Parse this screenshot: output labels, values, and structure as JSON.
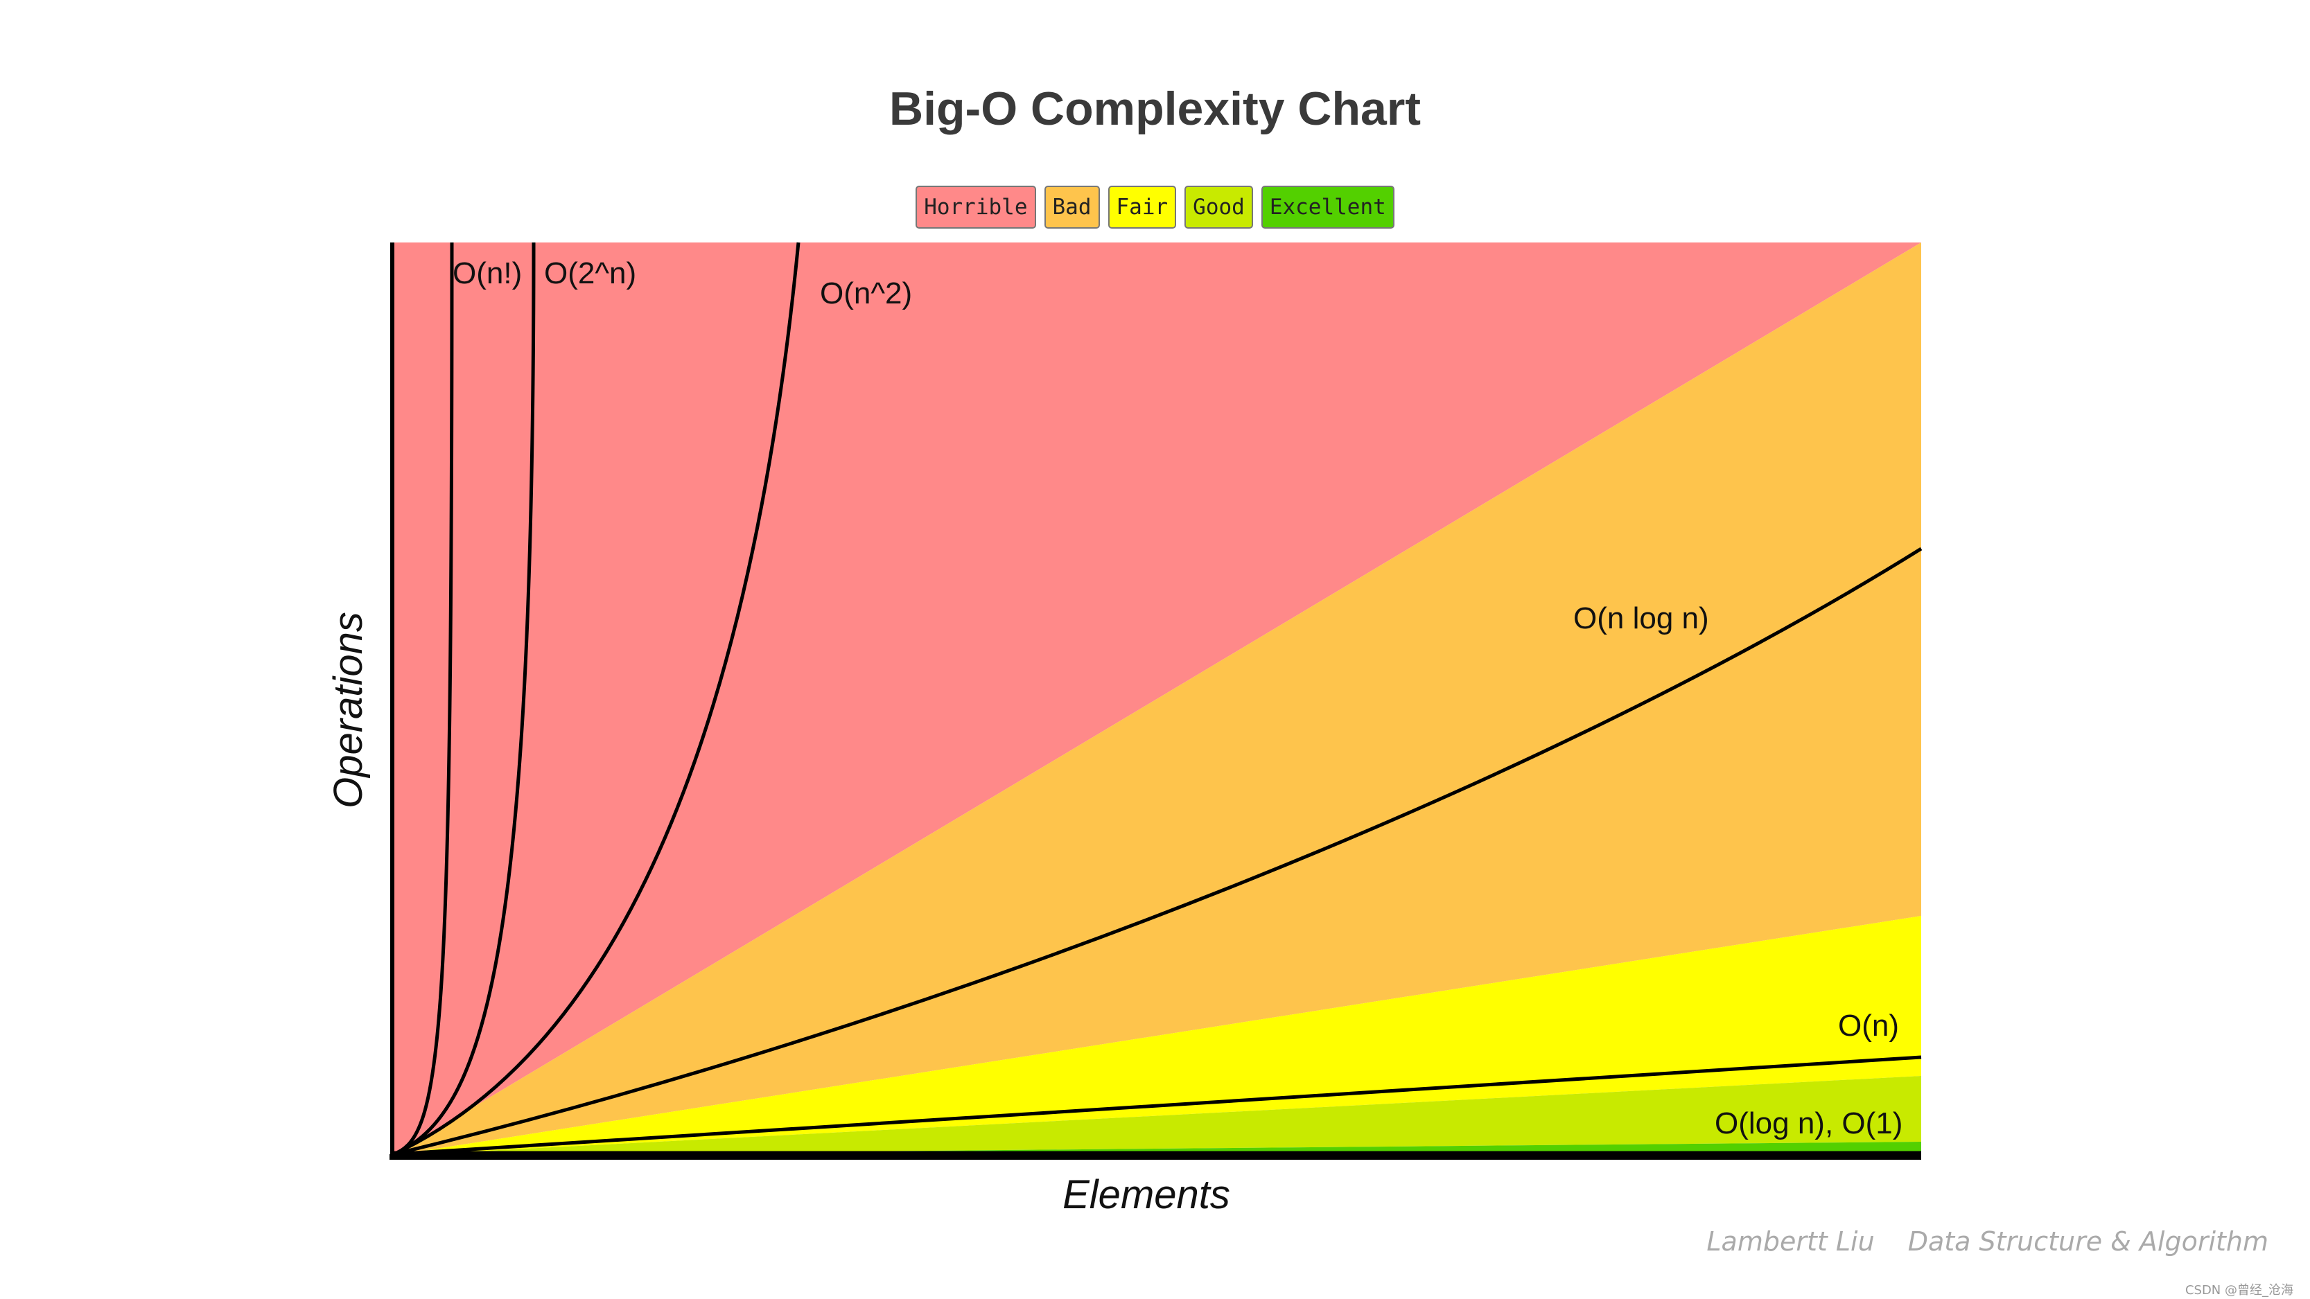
{
  "chart_data": {
    "type": "line",
    "title": "Big-O Complexity Chart",
    "xlabel": "Elements",
    "ylabel": "Operations",
    "legend": {
      "placement": "top-center",
      "items": [
        {
          "label": "Horrible",
          "color": "#ff8989"
        },
        {
          "label": "Bad",
          "color": "#fec44c"
        },
        {
          "label": "Fair",
          "color": "#ffff00"
        },
        {
          "label": "Good",
          "color": "#c8ea00"
        },
        {
          "label": "Excellent",
          "color": "#53d000"
        }
      ]
    },
    "zones": [
      {
        "name": "Horrible",
        "color": "#ff8989"
      },
      {
        "name": "Bad",
        "color": "#fec44c"
      },
      {
        "name": "Fair",
        "color": "#ffff00"
      },
      {
        "name": "Good",
        "color": "#c8ea00"
      },
      {
        "name": "Excellent",
        "color": "#53d000"
      }
    ],
    "series": [
      {
        "name": "O(n!)"
      },
      {
        "name": "O(2^n)"
      },
      {
        "name": "O(n^2)"
      },
      {
        "name": "O(n log n)"
      },
      {
        "name": "O(n)"
      },
      {
        "name": "O(log n), O(1)"
      }
    ],
    "grid": false
  },
  "watermark": {
    "author": "Lambertt Liu",
    "subject": "Data Structure & Algorithm",
    "source": "CSDN @曾经_沧海"
  }
}
